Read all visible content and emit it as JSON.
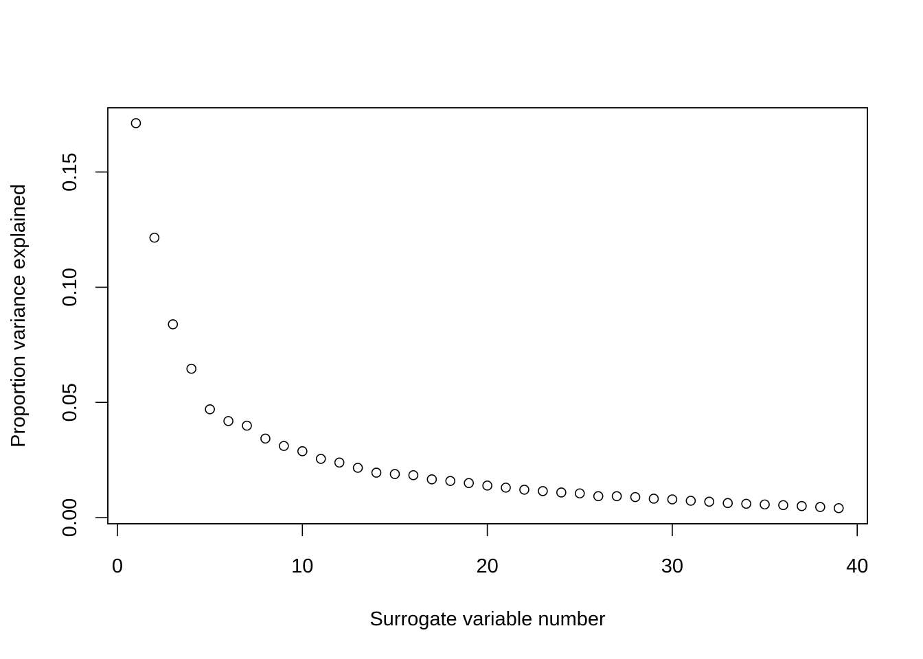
{
  "chart_data": {
    "type": "scatter",
    "title": "",
    "xlabel": "Surrogate variable number",
    "ylabel": "Proportion variance explained",
    "xlim": [
      0,
      40
    ],
    "ylim": [
      0,
      0.17
    ],
    "x_ticks": [
      0,
      10,
      20,
      30,
      40
    ],
    "x_tick_labels": [
      "0",
      "10",
      "20",
      "30",
      "40"
    ],
    "y_ticks": [
      0,
      0.05,
      0.1,
      0.15
    ],
    "y_tick_labels": [
      "0.00",
      "0.05",
      "0.10",
      "0.15"
    ],
    "grid": false,
    "legend": "none",
    "point_style": "open-circle",
    "x": [
      1,
      2,
      3,
      4,
      5,
      6,
      7,
      8,
      9,
      10,
      11,
      12,
      13,
      14,
      15,
      16,
      17,
      18,
      19,
      20,
      21,
      22,
      23,
      24,
      25,
      26,
      27,
      28,
      29,
      30,
      31,
      32,
      33,
      34,
      35,
      36,
      37,
      38,
      39
    ],
    "y": [
      0.1712,
      0.1215,
      0.0839,
      0.0646,
      0.047,
      0.0419,
      0.0399,
      0.0343,
      0.0311,
      0.0288,
      0.0255,
      0.0239,
      0.0216,
      0.0195,
      0.0189,
      0.0184,
      0.0166,
      0.0159,
      0.015,
      0.0139,
      0.013,
      0.0121,
      0.0115,
      0.0109,
      0.0105,
      0.0093,
      0.0093,
      0.0089,
      0.0082,
      0.0079,
      0.0073,
      0.0069,
      0.0063,
      0.006,
      0.0057,
      0.0054,
      0.005,
      0.0046,
      0.0041
    ]
  }
}
